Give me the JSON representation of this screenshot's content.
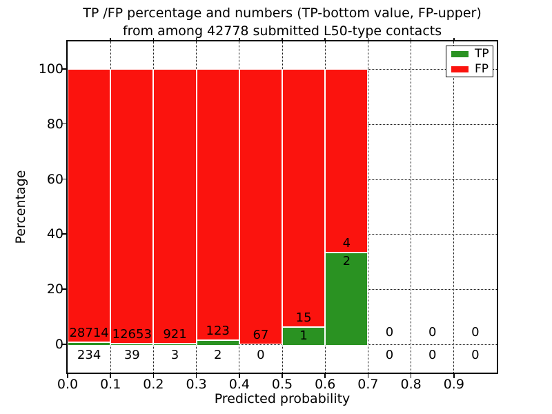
{
  "figure": {
    "title_line1": "TP /FP percentage and numbers (TP-bottom value, FP-upper)",
    "title_line2": "from among 42778 submitted L50-type contacts"
  },
  "axes": {
    "xlabel": "Predicted probability",
    "ylabel": "Percentage",
    "x_tick_labels": [
      "0.0",
      "0.1",
      "0.2",
      "0.3",
      "0.4",
      "0.5",
      "0.6",
      "0.7",
      "0.8",
      "0.9"
    ],
    "y_tick_labels": [
      "0",
      "20",
      "40",
      "60",
      "80",
      "100"
    ]
  },
  "legend": {
    "items": [
      {
        "label": "TP",
        "color": "#2a9222"
      },
      {
        "label": "FP",
        "color": "#fb130e"
      }
    ]
  },
  "chart_data": {
    "type": "bar",
    "stacked": true,
    "normalized": "each bin scaled to 100%, bar split = TP/(TP+FP)",
    "title": "TP /FP percentage and numbers (TP-bottom value, FP-upper) from among 42778 submitted L50-type contacts",
    "total_submitted": 42778,
    "xlabel": "Predicted probability",
    "ylabel": "Percentage",
    "xlim": [
      0.0,
      1.0
    ],
    "ylim": [
      -10,
      110
    ],
    "y_ticks": [
      0,
      20,
      40,
      60,
      80,
      100
    ],
    "x_ticks": [
      0.0,
      0.1,
      0.2,
      0.3,
      0.4,
      0.5,
      0.6,
      0.7,
      0.8,
      0.9
    ],
    "bin_width": 0.1,
    "categories": [
      "0.0-0.1",
      "0.1-0.2",
      "0.2-0.3",
      "0.3-0.4",
      "0.4-0.5",
      "0.5-0.6",
      "0.6-0.7",
      "0.7-0.8",
      "0.8-0.9",
      "0.9-1.0"
    ],
    "series": [
      {
        "name": "TP",
        "color": "#2a9222",
        "counts": [
          234,
          39,
          3,
          2,
          0,
          1,
          2,
          0,
          0,
          0
        ]
      },
      {
        "name": "FP",
        "color": "#fb130e",
        "counts": [
          28714,
          12653,
          921,
          123,
          67,
          15,
          4,
          0,
          0,
          0
        ]
      }
    ],
    "tp_percent_per_bin": [
      0.81,
      0.31,
      0.32,
      1.6,
      0.0,
      6.25,
      33.33,
      null,
      null,
      null
    ],
    "grid": "dotted black, on",
    "legend_position": "upper right",
    "annotation_scheme": "TP count printed at bar bottom, FP count printed above it; empty bins show 0 / 0"
  }
}
